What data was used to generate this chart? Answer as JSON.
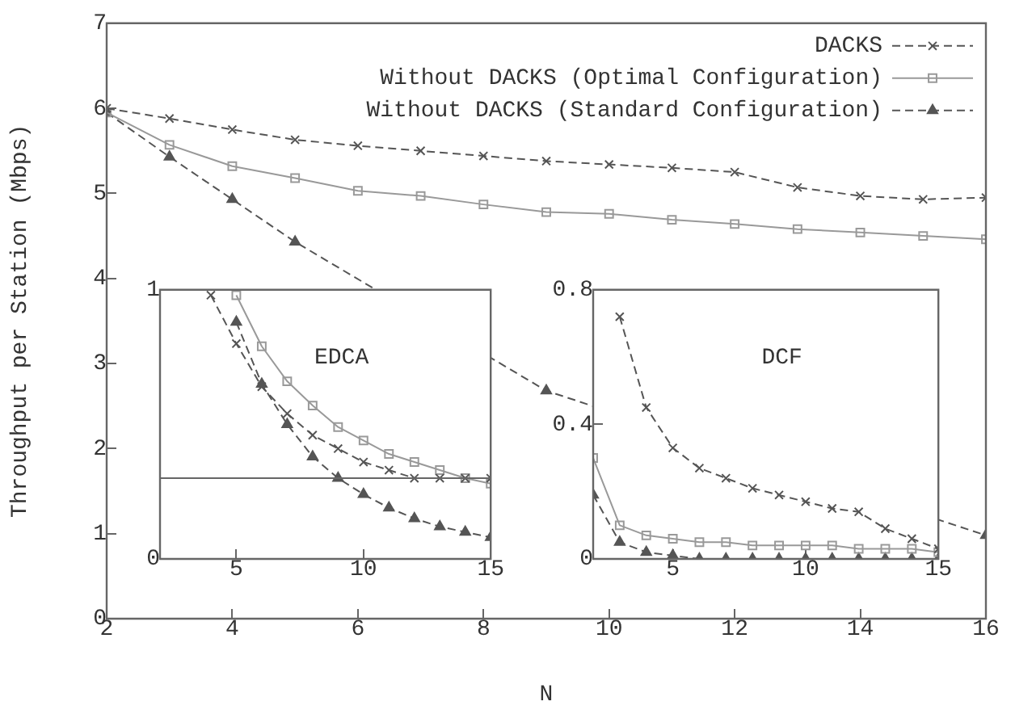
{
  "chart_data": [
    {
      "type": "line",
      "xlabel": "N",
      "ylabel": "Throughput per Station (Mbps)",
      "x": [
        2,
        3,
        4,
        5,
        6,
        7,
        8,
        9,
        10,
        11,
        12,
        13,
        14,
        15,
        16
      ],
      "xlim": [
        2,
        16
      ],
      "xticks": [
        2,
        4,
        6,
        8,
        10,
        12,
        14,
        16
      ],
      "ylim": [
        0,
        7
      ],
      "yticks": [
        0,
        1,
        2,
        3,
        4,
        5,
        6,
        7
      ],
      "grid": false,
      "legend": "top right",
      "series": [
        {
          "name": "DACKS",
          "color": "#555555",
          "marker": "cross",
          "line_style": "dashed",
          "values": [
            6.0,
            5.88,
            5.75,
            5.63,
            5.56,
            5.5,
            5.44,
            5.38,
            5.34,
            5.3,
            5.25,
            5.07,
            4.97,
            4.93,
            4.95
          ]
        },
        {
          "name": "Without DACKS (Optimal Configuration)",
          "color": "#999999",
          "marker": "square",
          "line_style": "solid",
          "values": [
            5.95,
            5.57,
            5.32,
            5.18,
            5.03,
            4.97,
            4.87,
            4.78,
            4.76,
            4.69,
            4.64,
            4.58,
            4.54,
            4.5,
            4.46
          ]
        },
        {
          "name": "Without DACKS (Standard Configuration)",
          "color": "#555555",
          "marker": "triangle",
          "line_style": "dashed",
          "values": [
            5.95,
            5.43,
            4.93,
            4.43,
            null,
            null,
            null,
            2.68,
            null,
            null,
            null,
            null,
            null,
            null,
            0.98
          ]
        }
      ]
    },
    {
      "type": "line",
      "title": "EDCA",
      "x": [
        4,
        5,
        6,
        7,
        8,
        9,
        10,
        11,
        12,
        13,
        14,
        15
      ],
      "xlim": [
        2,
        15
      ],
      "xticks": [
        5,
        10,
        15
      ],
      "ylim": [
        0,
        1
      ],
      "yticks": [
        0,
        1
      ],
      "grid": false,
      "ref_lines": [
        {
          "axis": "y",
          "value": 0.3,
          "color": "#666666"
        }
      ],
      "series": [
        {
          "color": "#555555",
          "marker": "cross",
          "line_style": "dashed",
          "values": [
            0.98,
            0.8,
            0.64,
            0.54,
            0.46,
            0.41,
            0.36,
            0.33,
            0.3,
            0.3,
            0.3,
            0.3
          ]
        },
        {
          "color": "#999999",
          "marker": "square",
          "line_style": "solid",
          "values": [
            null,
            0.98,
            0.79,
            0.66,
            0.57,
            0.49,
            0.44,
            0.39,
            0.36,
            0.33,
            0.3,
            0.28
          ]
        },
        {
          "color": "#555555",
          "marker": "triangle",
          "line_style": "dashed",
          "values": [
            null,
            0.88,
            0.65,
            0.5,
            0.38,
            0.3,
            0.24,
            0.19,
            0.15,
            0.12,
            0.1,
            0.08
          ]
        }
      ]
    },
    {
      "type": "line",
      "title": "DCF",
      "x": [
        2,
        3,
        4,
        5,
        6,
        7,
        8,
        9,
        10,
        11,
        12,
        13,
        14,
        15
      ],
      "xlim": [
        2,
        15
      ],
      "xticks": [
        5,
        10,
        15
      ],
      "ylim": [
        0,
        0.8
      ],
      "yticks": [
        0,
        0.4,
        0.8
      ],
      "grid": false,
      "series": [
        {
          "color": "#555555",
          "marker": "cross",
          "line_style": "dashed",
          "values": [
            null,
            0.72,
            0.45,
            0.33,
            0.27,
            0.24,
            0.21,
            0.19,
            0.17,
            0.15,
            0.14,
            0.09,
            0.06,
            0.03
          ]
        },
        {
          "color": "#999999",
          "marker": "square",
          "line_style": "solid",
          "values": [
            0.3,
            0.1,
            0.07,
            0.06,
            0.05,
            0.05,
            0.04,
            0.04,
            0.04,
            0.04,
            0.03,
            0.03,
            0.03,
            0.02
          ]
        },
        {
          "color": "#555555",
          "marker": "triangle",
          "line_style": "dashed",
          "values": [
            0.19,
            0.05,
            0.02,
            0.01,
            0,
            0,
            0,
            0,
            0,
            0,
            0,
            0,
            0,
            0
          ]
        }
      ]
    }
  ]
}
